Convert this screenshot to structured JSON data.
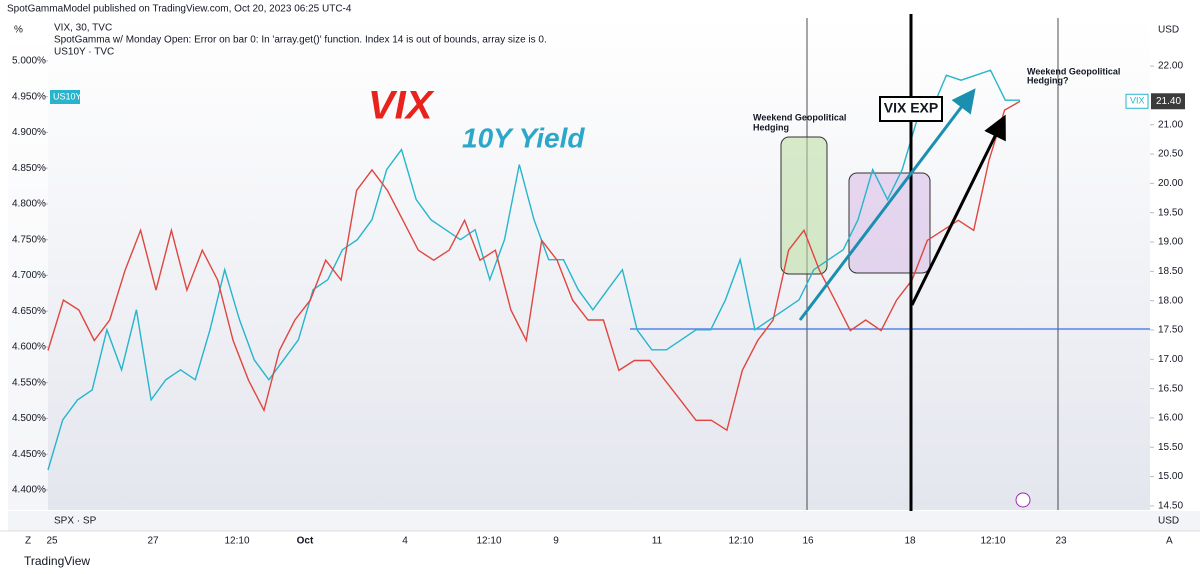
{
  "header": "SpotGammaModel published on TradingView.com, Oct 20, 2023 06:25 UTC-4",
  "legend": [
    "VIX, 30, TVC",
    "SpotGamma w/ Monday Open: Error on bar 0: In 'array.get()' function. Index 14 is out of bounds, array size is 0.",
    "US10Y · TVC"
  ],
  "left_unit": "%",
  "right_unit": "USD",
  "lower_pane": {
    "label": "SPX · SP",
    "unit": "USD"
  },
  "x_labels": [
    "25",
    "27",
    "12:10",
    "Oct",
    "4",
    "12:10",
    "9",
    "11",
    "12:10",
    "16",
    "18",
    "12:10",
    "23"
  ],
  "corner_left": "Z",
  "corner_right": "A",
  "footer": "TradingView",
  "annotations": {
    "vix": "VIX",
    "yield": "10Y Yield",
    "hedge1": [
      "Weekend Geopolitical",
      "Hedging"
    ],
    "vix_exp": "VIX EXP",
    "hedge2": [
      "Weekend Geopolitical",
      "Hedging?"
    ]
  },
  "chart_data": {
    "type": "line",
    "ylim": [
      4.372,
      5.06
    ],
    "yticks": [
      {
        "value": 5,
        "label": "5.000%"
      },
      {
        "value": 4.95,
        "label": "4.950%"
      },
      {
        "value": 4.9,
        "label": "4.900%"
      },
      {
        "value": 4.85,
        "label": "4.850%"
      },
      {
        "value": 4.8,
        "label": "4.800%"
      },
      {
        "value": 4.75,
        "label": "4.750%"
      },
      {
        "value": 4.7,
        "label": "4.700%"
      },
      {
        "value": 4.65,
        "label": "4.650%"
      },
      {
        "value": 4.6,
        "label": "4.600%"
      },
      {
        "value": 4.55,
        "label": "4.550%"
      },
      {
        "value": 4.5,
        "label": "4.500%"
      },
      {
        "value": 4.45,
        "label": "4.450%"
      },
      {
        "value": 4.4,
        "label": "4.400%"
      }
    ],
    "y2lim": [
      14.43,
      22.82
    ],
    "y2ticks": [
      {
        "value": 22,
        "label": "22.00"
      },
      {
        "value": 21,
        "label": "21.00"
      },
      {
        "value": 20.5,
        "label": "20.50"
      },
      {
        "value": 20,
        "label": "20.00"
      },
      {
        "value": 19.5,
        "label": "19.50"
      },
      {
        "value": 19,
        "label": "19.00"
      },
      {
        "value": 18.5,
        "label": "18.50"
      },
      {
        "value": 18,
        "label": "18.00"
      },
      {
        "value": 17.5,
        "label": "17.50"
      },
      {
        "value": 17,
        "label": "17.00"
      },
      {
        "value": 16.5,
        "label": "16.50"
      },
      {
        "value": 16,
        "label": "16.00"
      },
      {
        "value": 15.5,
        "label": "15.50"
      },
      {
        "value": 15,
        "label": "15.00"
      },
      {
        "value": 14.5,
        "label": "14.50"
      }
    ],
    "series": [
      {
        "name": "US10Y",
        "color": "#26b5cc",
        "axis": "y",
        "values": [
          4.428,
          4.498,
          4.526,
          4.54,
          4.624,
          4.568,
          4.652,
          4.526,
          4.554,
          4.568,
          4.554,
          4.624,
          4.708,
          4.638,
          4.582,
          4.554,
          4.582,
          4.61,
          4.68,
          4.694,
          4.736,
          4.75,
          4.778,
          4.848,
          4.876,
          4.806,
          4.778,
          4.764,
          4.75,
          4.764,
          4.694,
          4.75,
          4.855,
          4.778,
          4.722,
          4.722,
          4.68,
          4.652,
          4.68,
          4.708,
          4.624,
          4.596,
          4.596,
          4.61,
          4.624,
          4.624,
          4.666,
          4.722,
          4.624,
          4.638,
          4.652,
          4.666,
          4.708,
          4.722,
          4.736,
          4.778,
          4.848,
          4.806,
          4.848,
          4.917,
          4.931,
          4.98,
          4.973,
          4.98,
          4.987,
          4.945,
          4.945
        ]
      },
      {
        "name": "VIX",
        "color": "#e0463f",
        "axis": "y2",
        "values": [
          17.15,
          18.01,
          17.84,
          17.32,
          17.67,
          18.52,
          19.2,
          18.18,
          19.2,
          18.18,
          18.86,
          18.35,
          17.32,
          16.64,
          16.13,
          17.15,
          17.67,
          18.01,
          18.69,
          18.35,
          19.88,
          20.23,
          19.88,
          19.37,
          18.86,
          18.69,
          18.86,
          19.37,
          18.69,
          18.86,
          17.84,
          17.32,
          19.03,
          18.69,
          18.01,
          17.67,
          17.67,
          16.81,
          16.98,
          16.98,
          16.64,
          16.3,
          15.96,
          15.96,
          15.79,
          16.81,
          17.32,
          17.67,
          18.86,
          19.2,
          18.52,
          18.01,
          17.49,
          17.67,
          17.49,
          18.01,
          18.35,
          19.03,
          19.2,
          19.37,
          19.2,
          20.4,
          21.25,
          21.4
        ],
        "value_labels": {
          "63": "21.40"
        }
      }
    ]
  }
}
